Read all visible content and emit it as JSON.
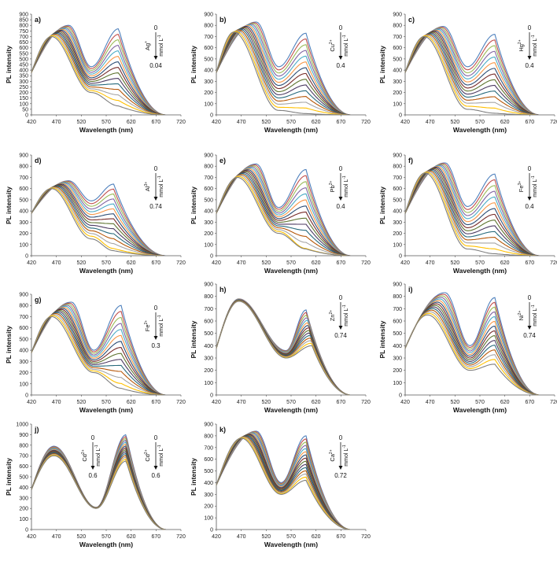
{
  "figure": {
    "panels": [
      {
        "letter": "a)",
        "ion": "Ag",
        "charge": "+",
        "start": "0",
        "end": "0.04",
        "unit": "mmol L",
        "unit_exp": "-1"
      },
      {
        "letter": "b)",
        "ion": "Cu",
        "charge": "2+",
        "start": "0",
        "end": "0.4",
        "unit": "mmol L",
        "unit_exp": "-1"
      },
      {
        "letter": "c)",
        "ion": "Hg",
        "charge": "2+",
        "start": "0",
        "end": "0.4",
        "unit": "mmol L",
        "unit_exp": "-1"
      },
      {
        "letter": "d)",
        "ion": "Al",
        "charge": "3+",
        "start": "0",
        "end": "0.74",
        "unit": "mmol L",
        "unit_exp": "-1"
      },
      {
        "letter": "e)",
        "ion": "Pb",
        "charge": "2+",
        "start": "0",
        "end": "0.4",
        "unit": "mmol L",
        "unit_exp": "-1"
      },
      {
        "letter": "f)",
        "ion": "Fe",
        "charge": "3+",
        "start": "0",
        "end": "0.4",
        "unit": "mmol L",
        "unit_exp": "-1"
      },
      {
        "letter": "g)",
        "ion": "Fe",
        "charge": "2+",
        "start": "0",
        "end": "0.3",
        "unit": "mmol L",
        "unit_exp": "-1"
      },
      {
        "letter": "h)",
        "ion": "Zn",
        "charge": "2+",
        "start": "0",
        "end": "0.74",
        "unit": "mmol L",
        "unit_exp": "-1"
      },
      {
        "letter": "i)",
        "ion": "Ni",
        "charge": "2+",
        "start": "0",
        "end": "0.74",
        "unit": "mmol L",
        "unit_exp": "-1"
      },
      {
        "letter": "j)",
        "ion": "Cd",
        "charge": "2+",
        "start": "0",
        "end": "0.6",
        "unit": "mmol L",
        "unit_exp": "-1"
      },
      {
        "letter": "k)",
        "ion": "Ca",
        "charge": "2+",
        "start": "0",
        "end": "0.72",
        "unit": "mmol L",
        "unit_exp": "-1"
      }
    ]
  },
  "chart_data": [
    {
      "type": "line",
      "panel": "a)",
      "ion": "Ag+",
      "xlabel": "Wavelength (nm)",
      "ylabel": "PL intensity",
      "xlim": [
        420,
        720
      ],
      "ylim": [
        0,
        900
      ],
      "xticks": [
        420,
        470,
        520,
        570,
        620,
        670,
        720
      ],
      "yticks": [
        0,
        50,
        100,
        150,
        200,
        250,
        300,
        350,
        400,
        450,
        500,
        550,
        600,
        650,
        700,
        750,
        800,
        850,
        900
      ],
      "concentration_range": [
        0,
        0.04
      ],
      "series_count": 15,
      "first_curve": {
        "peak1": {
          "x": 495,
          "y": 800
        },
        "valley": {
          "x": 540,
          "y": 430
        },
        "peak2": {
          "x": 595,
          "y": 770
        }
      },
      "last_curve": {
        "peak1": {
          "x": 460,
          "y": 700
        },
        "valley": {
          "x": 540,
          "y": 200
        },
        "peak2": {
          "x": 595,
          "y": 80
        }
      }
    },
    {
      "type": "line",
      "panel": "b)",
      "ion": "Cu2+",
      "xlabel": "Wavelength (nm)",
      "ylabel": "PL intensity",
      "xlim": [
        420,
        720
      ],
      "ylim": [
        0,
        900
      ],
      "xticks": [
        420,
        470,
        520,
        570,
        620,
        670,
        720
      ],
      "yticks": [
        0,
        100,
        200,
        300,
        400,
        500,
        600,
        700,
        800,
        900
      ],
      "concentration_range": [
        0,
        0.4
      ],
      "series_count": 15,
      "first_curve": {
        "peak1": {
          "x": 500,
          "y": 830
        },
        "valley": {
          "x": 545,
          "y": 430
        },
        "peak2": {
          "x": 600,
          "y": 730
        }
      },
      "last_curve": {
        "peak1": {
          "x": 455,
          "y": 740
        },
        "valley": {
          "x": 545,
          "y": 40
        },
        "peak2": {
          "x": 600,
          "y": 10
        }
      }
    },
    {
      "type": "line",
      "panel": "c)",
      "ion": "Hg2+",
      "xlabel": "Wavelength (nm)",
      "ylabel": "PL intensity",
      "xlim": [
        420,
        720
      ],
      "ylim": [
        0,
        900
      ],
      "xticks": [
        420,
        470,
        520,
        570,
        620,
        670,
        720
      ],
      "yticks": [
        0,
        100,
        200,
        300,
        400,
        500,
        600,
        700,
        800,
        900
      ],
      "concentration_range": [
        0,
        0.4
      ],
      "series_count": 15,
      "first_curve": {
        "peak1": {
          "x": 497,
          "y": 790
        },
        "valley": {
          "x": 545,
          "y": 430
        },
        "peak2": {
          "x": 600,
          "y": 720
        }
      },
      "last_curve": {
        "peak1": {
          "x": 458,
          "y": 700
        },
        "valley": {
          "x": 545,
          "y": 50
        },
        "peak2": {
          "x": 600,
          "y": 10
        }
      }
    },
    {
      "type": "line",
      "panel": "d)",
      "ion": "Al3+",
      "xlabel": "Wavelength (nm)",
      "ylabel": "PL intensity",
      "xlim": [
        420,
        720
      ],
      "ylim": [
        0,
        900
      ],
      "xticks": [
        420,
        470,
        520,
        570,
        620,
        670,
        720
      ],
      "yticks": [
        0,
        100,
        200,
        300,
        400,
        500,
        600,
        700,
        800,
        900
      ],
      "concentration_range": [
        0,
        0.74
      ],
      "series_count": 15,
      "first_curve": {
        "peak1": {
          "x": 495,
          "y": 670
        },
        "valley": {
          "x": 540,
          "y": 490
        },
        "peak2": {
          "x": 585,
          "y": 640
        }
      },
      "last_curve": {
        "peak1": {
          "x": 460,
          "y": 600
        },
        "valley": {
          "x": 540,
          "y": 150
        },
        "peak2": {
          "x": 585,
          "y": 20
        }
      }
    },
    {
      "type": "line",
      "panel": "e)",
      "ion": "Pb2+",
      "xlabel": "Wavelength (nm)",
      "ylabel": "PL intensity",
      "xlim": [
        420,
        720
      ],
      "ylim": [
        0,
        900
      ],
      "xticks": [
        420,
        470,
        520,
        570,
        620,
        670,
        720
      ],
      "yticks": [
        0,
        100,
        200,
        300,
        400,
        500,
        600,
        700,
        800,
        900
      ],
      "concentration_range": [
        0,
        0.4
      ],
      "series_count": 15,
      "first_curve": {
        "peak1": {
          "x": 500,
          "y": 820
        },
        "valley": {
          "x": 545,
          "y": 430
        },
        "peak2": {
          "x": 600,
          "y": 770
        }
      },
      "last_curve": {
        "peak1": {
          "x": 462,
          "y": 700
        },
        "valley": {
          "x": 545,
          "y": 200
        },
        "peak2": {
          "x": 600,
          "y": 10
        }
      }
    },
    {
      "type": "line",
      "panel": "f)",
      "ion": "Fe3+",
      "xlabel": "Wavelength (nm)",
      "ylabel": "PL intensity",
      "xlim": [
        420,
        720
      ],
      "ylim": [
        0,
        900
      ],
      "xticks": [
        420,
        470,
        520,
        570,
        620,
        670,
        720
      ],
      "yticks": [
        0,
        100,
        200,
        300,
        400,
        500,
        600,
        700,
        800,
        900
      ],
      "concentration_range": [
        0,
        0.4
      ],
      "series_count": 15,
      "first_curve": {
        "peak1": {
          "x": 500,
          "y": 830
        },
        "valley": {
          "x": 545,
          "y": 440
        },
        "peak2": {
          "x": 600,
          "y": 730
        }
      },
      "last_curve": {
        "peak1": {
          "x": 460,
          "y": 740
        },
        "valley": {
          "x": 545,
          "y": 60
        },
        "peak2": {
          "x": 600,
          "y": 10
        }
      }
    },
    {
      "type": "line",
      "panel": "g)",
      "ion": "Fe2+",
      "xlabel": "Wavelength (nm)",
      "ylabel": "PL intensity",
      "xlim": [
        420,
        720
      ],
      "ylim": [
        0,
        900
      ],
      "xticks": [
        420,
        470,
        520,
        570,
        620,
        670,
        720
      ],
      "yticks": [
        0,
        100,
        200,
        300,
        400,
        500,
        600,
        700,
        800,
        900
      ],
      "concentration_range": [
        0,
        0.3
      ],
      "series_count": 15,
      "first_curve": {
        "peak1": {
          "x": 500,
          "y": 830
        },
        "valley": {
          "x": 545,
          "y": 400
        },
        "peak2": {
          "x": 600,
          "y": 800
        }
      },
      "last_curve": {
        "peak1": {
          "x": 460,
          "y": 700
        },
        "valley": {
          "x": 545,
          "y": 200
        },
        "peak2": {
          "x": 600,
          "y": 50
        }
      }
    },
    {
      "type": "line",
      "panel": "h)",
      "ion": "Zn2+",
      "xlabel": "Wavelength (nm)",
      "ylabel": "PL intensity",
      "xlim": [
        420,
        720
      ],
      "ylim": [
        0,
        900
      ],
      "xticks": [
        420,
        470,
        520,
        570,
        620,
        670,
        720
      ],
      "yticks": [
        0,
        100,
        200,
        300,
        400,
        500,
        600,
        700,
        800,
        900
      ],
      "concentration_range": [
        0,
        0.74
      ],
      "series_count": 15,
      "first_curve": {
        "peak1": {
          "x": 465,
          "y": 780
        },
        "valley": {
          "x": 560,
          "y": 360
        },
        "peak2": {
          "x": 600,
          "y": 690
        }
      },
      "last_curve": {
        "peak1": {
          "x": 465,
          "y": 760
        },
        "valley": {
          "x": 560,
          "y": 300
        },
        "peak2": {
          "x": 612,
          "y": 400
        }
      }
    },
    {
      "type": "line",
      "panel": "i)",
      "ion": "Ni2+",
      "xlabel": "Wavelength (nm)",
      "ylabel": "PL intensity",
      "xlim": [
        420,
        720
      ],
      "ylim": [
        0,
        900
      ],
      "xticks": [
        420,
        470,
        520,
        570,
        620,
        670,
        720
      ],
      "yticks": [
        0,
        100,
        200,
        300,
        400,
        500,
        600,
        700,
        800,
        900
      ],
      "concentration_range": [
        0,
        0.74
      ],
      "series_count": 15,
      "first_curve": {
        "peak1": {
          "x": 500,
          "y": 830
        },
        "valley": {
          "x": 550,
          "y": 400
        },
        "peak2": {
          "x": 600,
          "y": 790
        }
      },
      "last_curve": {
        "peak1": {
          "x": 465,
          "y": 650
        },
        "valley": {
          "x": 550,
          "y": 200
        },
        "peak2": {
          "x": 600,
          "y": 250
        }
      }
    },
    {
      "type": "line",
      "panel": "j)",
      "ion": "Cd2+",
      "xlabel": "Wavelength (nm)",
      "ylabel": "PL intensity",
      "xlim": [
        420,
        720
      ],
      "ylim": [
        0,
        1000
      ],
      "xticks": [
        420,
        470,
        520,
        570,
        620,
        670,
        720
      ],
      "yticks": [
        0,
        100,
        200,
        300,
        400,
        500,
        600,
        700,
        800,
        900,
        1000
      ],
      "concentration_range": [
        0,
        0.6
      ],
      "series_count": 15,
      "first_curve": {
        "peak1": {
          "x": 465,
          "y": 790
        },
        "valley": {
          "x": 550,
          "y": 210
        },
        "peak2": {
          "x": 610,
          "y": 900
        }
      },
      "last_curve": {
        "peak1": {
          "x": 465,
          "y": 700
        },
        "valley": {
          "x": 550,
          "y": 200
        },
        "peak2": {
          "x": 610,
          "y": 650
        }
      }
    },
    {
      "type": "line",
      "panel": "k)",
      "ion": "Ca2+",
      "xlabel": "Wavelength (nm)",
      "ylabel": "PL intensity",
      "xlim": [
        420,
        720
      ],
      "ylim": [
        0,
        900
      ],
      "xticks": [
        420,
        470,
        520,
        570,
        620,
        670,
        720
      ],
      "yticks": [
        0,
        100,
        200,
        300,
        400,
        500,
        600,
        700,
        800,
        900
      ],
      "concentration_range": [
        0,
        0.72
      ],
      "series_count": 15,
      "first_curve": {
        "peak1": {
          "x": 500,
          "y": 840
        },
        "valley": {
          "x": 550,
          "y": 400
        },
        "peak2": {
          "x": 600,
          "y": 800
        }
      },
      "last_curve": {
        "peak1": {
          "x": 470,
          "y": 780
        },
        "valley": {
          "x": 550,
          "y": 300
        },
        "peak2": {
          "x": 600,
          "y": 420
        }
      }
    }
  ]
}
